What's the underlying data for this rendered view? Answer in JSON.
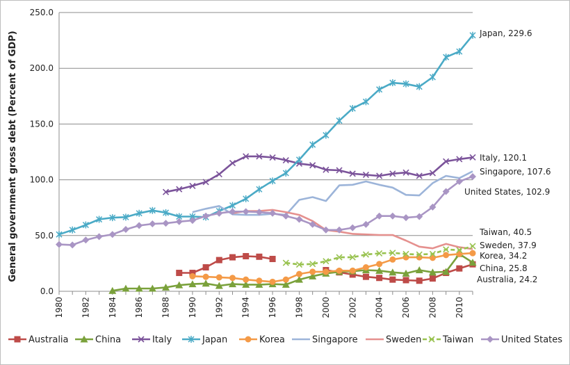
{
  "chart_data": {
    "type": "line",
    "title": "",
    "xlabel": "",
    "ylabel": "General government gross debt (Percent of GDP)",
    "xlim": [
      1980,
      2011
    ],
    "ylim": [
      0,
      250
    ],
    "y_ticks": [
      "0.0",
      "50.0",
      "100.0",
      "150.0",
      "200.0",
      "250.0"
    ],
    "x_ticks": [
      "1980",
      "1982",
      "1984",
      "1986",
      "1988",
      "1990",
      "1992",
      "1994",
      "1996",
      "1998",
      "2000",
      "2002",
      "2004",
      "2006",
      "2008",
      "2010"
    ],
    "grid": "horizontal",
    "legend_position": "bottom",
    "series": [
      {
        "name": "Australia",
        "color": "#be4b48",
        "marker": "square",
        "dash": "solid",
        "x": [
          1989,
          1990,
          1991,
          1992,
          1993,
          1994,
          1995,
          1996,
          1997,
          1998,
          1999,
          2000,
          2001,
          2002,
          2003,
          2004,
          2005,
          2006,
          2007,
          2008,
          2009,
          2010,
          2011
        ],
        "y": [
          16.5,
          16.5,
          21.5,
          28,
          30.5,
          31.5,
          31,
          29,
          null,
          null,
          null,
          19,
          17,
          15,
          13,
          12,
          10.5,
          10,
          9.5,
          11.5,
          16.5,
          20.5,
          24.2
        ]
      },
      {
        "name": "China",
        "color": "#7aa13b",
        "marker": "triangle",
        "dash": "solid",
        "x": [
          1984,
          1985,
          1986,
          1987,
          1988,
          1989,
          1990,
          1991,
          1992,
          1993,
          1994,
          1995,
          1996,
          1997,
          1998,
          1999,
          2000,
          2001,
          2002,
          2003,
          2004,
          2005,
          2006,
          2007,
          2008,
          2009,
          2010,
          2011
        ],
        "y": [
          0.5,
          2.5,
          2.5,
          2.5,
          3.5,
          5.5,
          6.5,
          7,
          5,
          6.5,
          6,
          6,
          6.5,
          6,
          10.5,
          13.5,
          16,
          17.5,
          18,
          19,
          18.5,
          17,
          16,
          19,
          17,
          17.5,
          33.5,
          25.8
        ]
      },
      {
        "name": "Italy",
        "color": "#7b539a",
        "marker": "x",
        "dash": "solid",
        "x": [
          1988,
          1989,
          1990,
          1991,
          1992,
          1993,
          1994,
          1995,
          1996,
          1997,
          1998,
          1999,
          2000,
          2001,
          2002,
          2003,
          2004,
          2005,
          2006,
          2007,
          2008,
          2009,
          2010,
          2011
        ],
        "y": [
          89,
          91.5,
          94.5,
          98,
          105,
          115,
          121,
          121,
          120,
          117.5,
          114.5,
          113,
          109,
          108.5,
          105.5,
          104.5,
          103.5,
          105.5,
          106.5,
          103.5,
          106,
          116.5,
          118.5,
          120.1
        ]
      },
      {
        "name": "Japan",
        "color": "#4aaac6",
        "marker": "asterisk",
        "dash": "solid",
        "x": [
          1980,
          1981,
          1982,
          1983,
          1984,
          1985,
          1986,
          1987,
          1988,
          1989,
          1990,
          1991,
          1992,
          1993,
          1994,
          1995,
          1996,
          1997,
          1998,
          1999,
          2000,
          2001,
          2002,
          2003,
          2004,
          2005,
          2006,
          2007,
          2008,
          2009,
          2010,
          2011
        ],
        "y": [
          51,
          55,
          59.5,
          64.5,
          66,
          66.5,
          70,
          72.5,
          70.5,
          67,
          67,
          66.5,
          72,
          77,
          83,
          91.5,
          99,
          106,
          118,
          131.5,
          140,
          153,
          164,
          170,
          181,
          187,
          186,
          183.5,
          192,
          210,
          215,
          229.6
        ]
      },
      {
        "name": "Korea",
        "color": "#f49a47",
        "marker": "circle",
        "dash": "solid",
        "x": [
          1990,
          1991,
          1992,
          1993,
          1994,
          1995,
          1996,
          1997,
          1998,
          1999,
          2000,
          2001,
          2002,
          2003,
          2004,
          2005,
          2006,
          2007,
          2008,
          2009,
          2010,
          2011
        ],
        "y": [
          13.5,
          13,
          12.5,
          12,
          10.5,
          9.5,
          8.5,
          10.5,
          15.5,
          17.5,
          17.5,
          18.5,
          18.5,
          21.5,
          24.5,
          28.5,
          30.5,
          30.5,
          30,
          32.5,
          33.5,
          34.2
        ]
      },
      {
        "name": "Singapore",
        "color": "#9cb4d9",
        "marker": "none",
        "dash": "solid",
        "x": [
          1990,
          1991,
          1992,
          1993,
          1994,
          1995,
          1996,
          1997,
          1998,
          1999,
          2000,
          2001,
          2002,
          2003,
          2004,
          2005,
          2006,
          2007,
          2008,
          2009,
          2010,
          2011
        ],
        "y": [
          71,
          74,
          76.5,
          69,
          68.5,
          68.5,
          69.5,
          68.5,
          82,
          84.5,
          81,
          95,
          95.5,
          98.5,
          95.5,
          93,
          86.5,
          86,
          97,
          103.5,
          101.5,
          107.6
        ]
      },
      {
        "name": "Sweden",
        "color": "#e5908e",
        "marker": "none",
        "dash": "solid",
        "x": [
          1993,
          1994,
          1995,
          1996,
          1997,
          1998,
          1999,
          2000,
          2001,
          2002,
          2003,
          2004,
          2005,
          2006,
          2007,
          2008,
          2009,
          2010,
          2011
        ],
        "y": [
          70,
          72,
          72,
          73,
          71,
          68.5,
          63,
          55,
          53.5,
          51.5,
          51,
          50.5,
          50.5,
          45.5,
          40,
          38.5,
          42.5,
          39.5,
          37.9
        ]
      },
      {
        "name": "Taiwan",
        "color": "#98c24f",
        "marker": "x",
        "dash": "dashed",
        "x": [
          1997,
          1998,
          1999,
          2000,
          2001,
          2002,
          2003,
          2004,
          2005,
          2006,
          2007,
          2008,
          2009,
          2010,
          2011
        ],
        "y": [
          25.5,
          24,
          24.5,
          27,
          30.5,
          30.5,
          33,
          34,
          34.5,
          33.5,
          33,
          33.5,
          37.5,
          37,
          40.5
        ]
      },
      {
        "name": "United States",
        "color": "#a995c4",
        "marker": "diamond",
        "dash": "solid",
        "x": [
          1980,
          1981,
          1982,
          1983,
          1984,
          1985,
          1986,
          1987,
          1988,
          1989,
          1990,
          1991,
          1992,
          1993,
          1994,
          1995,
          1996,
          1997,
          1998,
          1999,
          2000,
          2001,
          2002,
          2003,
          2004,
          2005,
          2006,
          2007,
          2008,
          2009,
          2010,
          2011
        ],
        "y": [
          42,
          41.5,
          46,
          49,
          51,
          55.5,
          59,
          60.5,
          61,
          62.5,
          63.5,
          67.5,
          70,
          71.5,
          71.5,
          71,
          70,
          67.5,
          64.5,
          60,
          55,
          55,
          57,
          60,
          67.5,
          67.5,
          66,
          67,
          75.5,
          89.5,
          98.5,
          102.9
        ]
      }
    ],
    "end_labels": [
      {
        "series": "Japan",
        "text": "Japan, 229.6"
      },
      {
        "series": "Italy",
        "text": "Italy, 120.1"
      },
      {
        "series": "Singapore",
        "text": "Singapore, 107.6"
      },
      {
        "series": "United States",
        "text": "United States, 102.9"
      },
      {
        "series": "Taiwan",
        "text": "Taiwan, 40.5"
      },
      {
        "series": "Sweden",
        "text": "Sweden, 37.9"
      },
      {
        "series": "Korea",
        "text": "Korea, 34.2"
      },
      {
        "series": "China",
        "text": "China, 25.8"
      },
      {
        "series": "Australia",
        "text": "Australia, 24.2"
      }
    ]
  }
}
